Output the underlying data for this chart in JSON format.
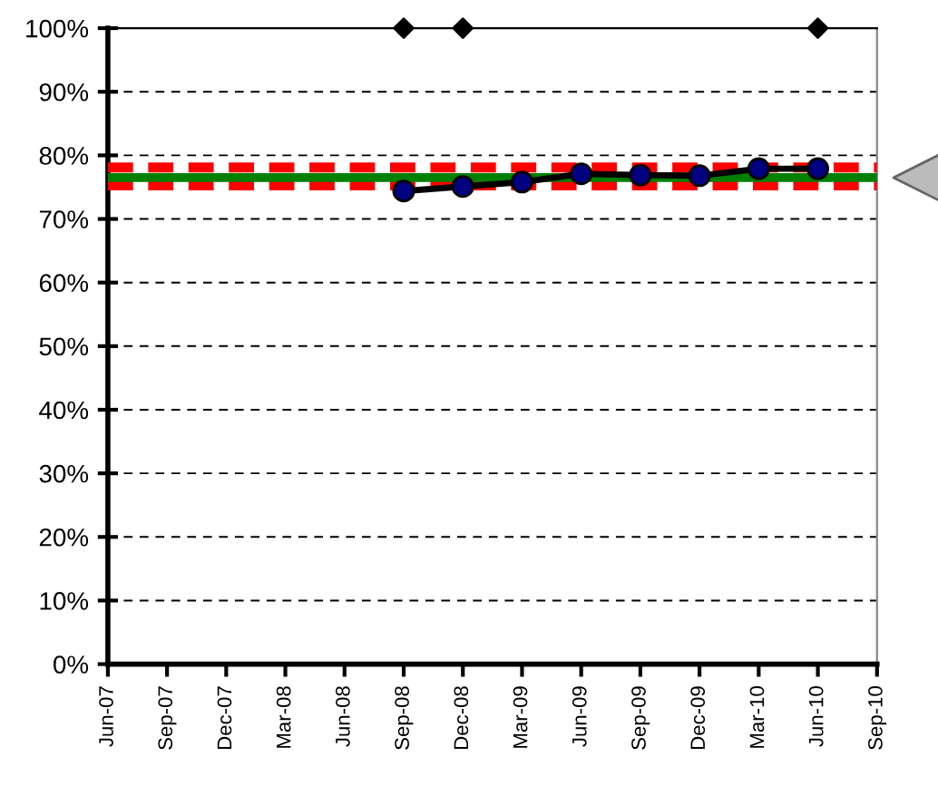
{
  "chart_data": {
    "type": "line",
    "categories": [
      "Jun-07",
      "Sep-07",
      "Dec-07",
      "Mar-08",
      "Jun-08",
      "Sep-08",
      "Dec-08",
      "Mar-09",
      "Jun-09",
      "Sep-09",
      "Dec-09",
      "Mar-10",
      "Jun-10",
      "Sep-10"
    ],
    "series": [
      {
        "color": "#000000",
        "marker": "circle",
        "values": [
          null,
          null,
          null,
          null,
          null,
          74.4,
          75.1,
          75.8,
          77.1,
          76.9,
          76.8,
          77.9,
          77.9,
          null
        ]
      },
      {
        "type": "scatter",
        "color": "#000000",
        "marker": "diamond",
        "values": [
          null,
          null,
          null,
          null,
          null,
          100,
          100,
          null,
          null,
          null,
          null,
          null,
          100,
          null
        ]
      }
    ],
    "ylim": [
      0,
      100
    ],
    "yticks": [
      {
        "value": 0,
        "label": "0%"
      },
      {
        "value": 10,
        "label": "10%"
      },
      {
        "value": 20,
        "label": "20%"
      },
      {
        "value": 30,
        "label": "30%"
      },
      {
        "value": 40,
        "label": "40%"
      },
      {
        "value": 50,
        "label": "50%"
      },
      {
        "value": 60,
        "label": "60%"
      },
      {
        "value": 70,
        "label": "70%"
      },
      {
        "value": 80,
        "label": "80%"
      },
      {
        "value": 90,
        "label": "90%"
      },
      {
        "value": 100,
        "label": "100%"
      }
    ],
    "ref_lines": [
      {
        "axis": "y",
        "value": 78.1,
        "color": "#ff0000",
        "line_style": "dashed"
      },
      {
        "axis": "y",
        "value": 75.3,
        "color": "#ff0000",
        "line_style": "dashed"
      },
      {
        "axis": "y",
        "value": 76.5,
        "color": "#008000",
        "line_style": "solid"
      }
    ],
    "grid": "y",
    "legend": false
  }
}
